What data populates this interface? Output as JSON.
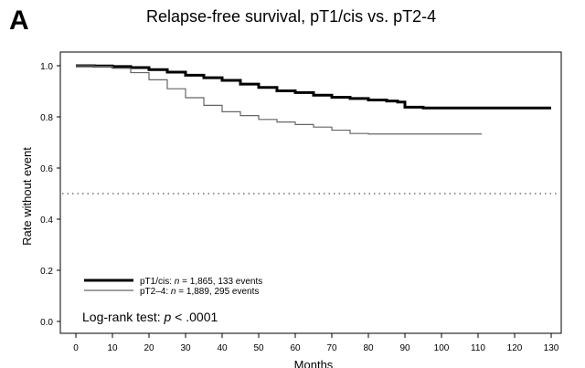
{
  "panel_letter": "A",
  "chart_data": {
    "type": "line",
    "title": "Relapse-free survival, pT1/cis vs. pT2-4",
    "xlabel": "Months",
    "ylabel": "Rate without event",
    "xlim": [
      0,
      130
    ],
    "ylim": [
      0.0,
      1.0
    ],
    "xticks": [
      0,
      10,
      20,
      30,
      40,
      50,
      60,
      70,
      80,
      90,
      100,
      110,
      120,
      130
    ],
    "yticks": [
      "0.0",
      "0.2",
      "0.4",
      "0.6",
      "0.8",
      "1.0"
    ],
    "reference_line": {
      "y": 0.5,
      "style": "dotted"
    },
    "legend_placement": "bottom-left",
    "series": [
      {
        "name": "pT1/cis: n = 1,865, 133 events",
        "legend_prefix": "pT1/cis: ",
        "legend_n": "n",
        "legend_suffix": " = 1,865, 133 events",
        "color": "#000000",
        "weight": "thick",
        "points": [
          [
            0,
            1.0
          ],
          [
            5,
            0.999
          ],
          [
            10,
            0.997
          ],
          [
            15,
            0.993
          ],
          [
            20,
            0.985
          ],
          [
            25,
            0.975
          ],
          [
            30,
            0.963
          ],
          [
            35,
            0.953
          ],
          [
            40,
            0.943
          ],
          [
            45,
            0.928
          ],
          [
            50,
            0.915
          ],
          [
            55,
            0.902
          ],
          [
            60,
            0.895
          ],
          [
            65,
            0.885
          ],
          [
            70,
            0.877
          ],
          [
            75,
            0.872
          ],
          [
            80,
            0.866
          ],
          [
            85,
            0.862
          ],
          [
            88,
            0.858
          ],
          [
            90,
            0.838
          ],
          [
            95,
            0.835
          ],
          [
            100,
            0.835
          ],
          [
            110,
            0.835
          ],
          [
            120,
            0.835
          ],
          [
            130,
            0.835
          ]
        ]
      },
      {
        "name": "pT2–4: n = 1,889, 295 events",
        "legend_prefix": "pT2–4: ",
        "legend_n": "n",
        "legend_suffix": " = 1,889, 295 events",
        "color": "#666666",
        "weight": "thin",
        "points": [
          [
            0,
            1.0
          ],
          [
            5,
            0.998
          ],
          [
            10,
            0.99
          ],
          [
            15,
            0.973
          ],
          [
            20,
            0.945
          ],
          [
            25,
            0.91
          ],
          [
            30,
            0.875
          ],
          [
            35,
            0.845
          ],
          [
            40,
            0.82
          ],
          [
            45,
            0.805
          ],
          [
            50,
            0.79
          ],
          [
            55,
            0.78
          ],
          [
            60,
            0.77
          ],
          [
            65,
            0.76
          ],
          [
            70,
            0.748
          ],
          [
            75,
            0.735
          ],
          [
            80,
            0.733
          ],
          [
            90,
            0.733
          ],
          [
            100,
            0.733
          ],
          [
            111,
            0.733
          ]
        ]
      }
    ],
    "annotation": {
      "prefix": "Log-rank test: ",
      "p": "p",
      "suffix": " < .0001"
    }
  }
}
